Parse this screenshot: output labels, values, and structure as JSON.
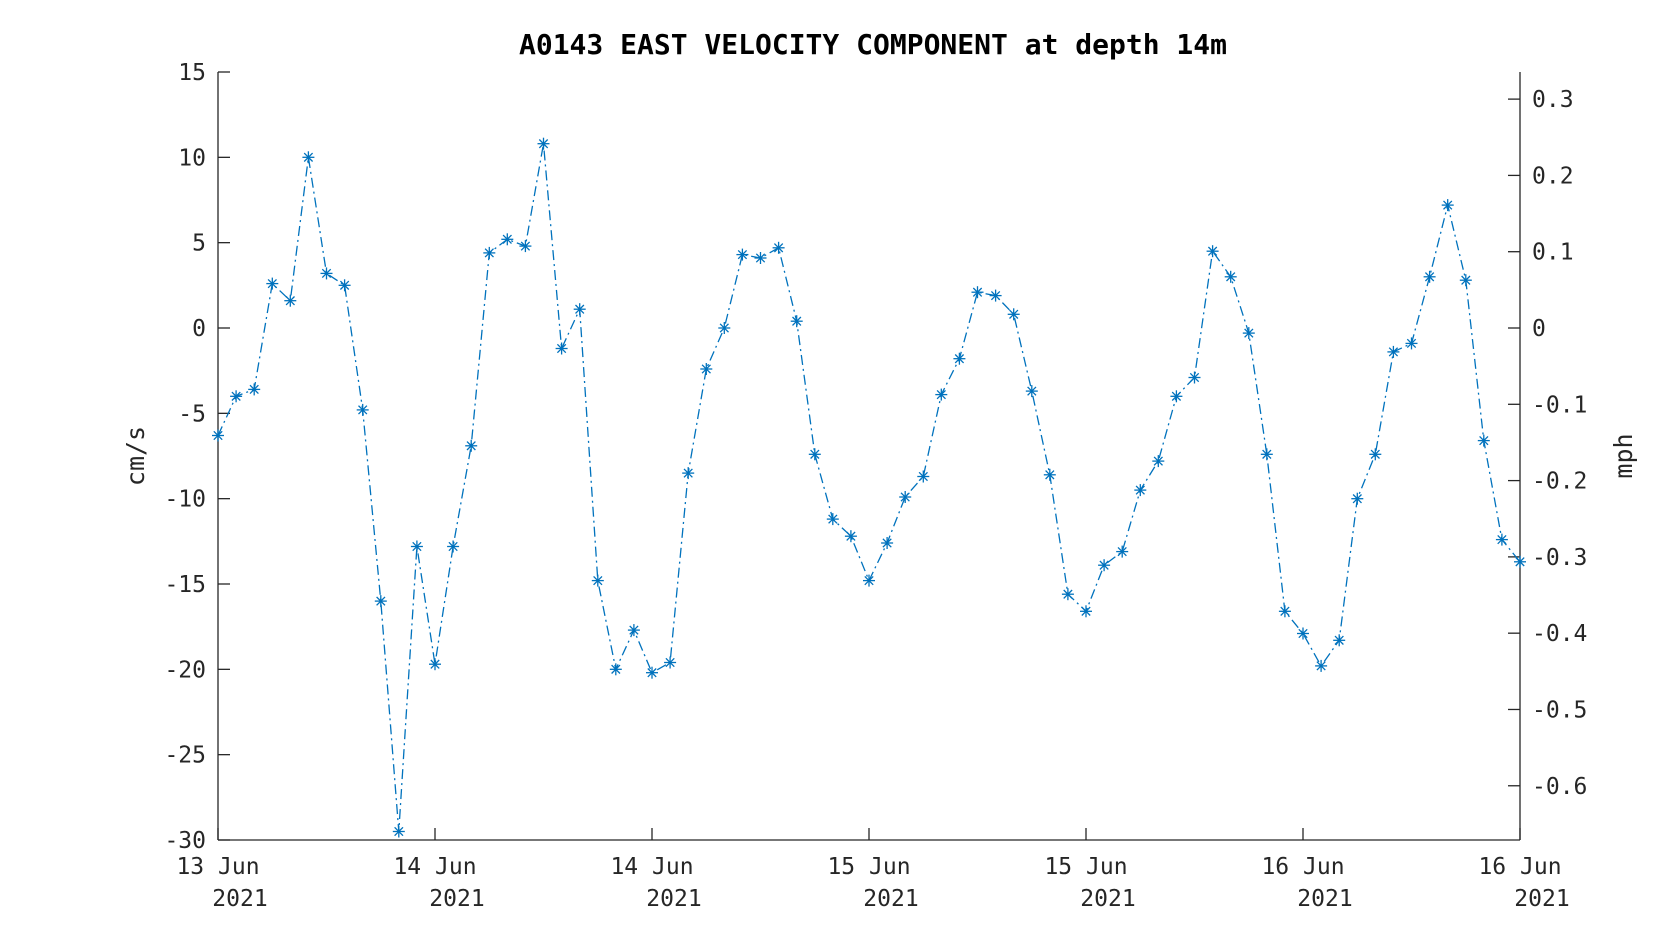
{
  "chart_data": {
    "type": "line",
    "title": "A0143 EAST VELOCITY COMPONENT at depth 14m",
    "ylabel": "cm/s",
    "ylabel_right": "mph",
    "ylim": [
      -30,
      15
    ],
    "yticks": [
      15,
      10,
      5,
      0,
      -5,
      -10,
      -15,
      -20,
      -25,
      -30
    ],
    "yticks_right": [
      "0.3",
      "0.2",
      "0.1",
      "0",
      "-0.1",
      "-0.2",
      "-0.3",
      "-0.4",
      "-0.5",
      "-0.6"
    ],
    "xlim": [
      0,
      72
    ],
    "xticks": [
      {
        "line1": "13 Jun",
        "line2": "2021"
      },
      {
        "line1": "14 Jun",
        "line2": "2021"
      },
      {
        "line1": "14 Jun",
        "line2": "2021"
      },
      {
        "line1": "15 Jun",
        "line2": "2021"
      },
      {
        "line1": "15 Jun",
        "line2": "2021"
      },
      {
        "line1": "16 Jun",
        "line2": "2021"
      },
      {
        "line1": "16 Jun",
        "line2": "2021"
      }
    ],
    "grid": false,
    "series": [
      {
        "color": "#0072BD",
        "line_style": "dash-dot",
        "marker": "asterisk",
        "values": [
          -6.3,
          -4.0,
          -3.6,
          2.6,
          1.6,
          10.0,
          3.2,
          2.5,
          -4.8,
          -16.0,
          -29.5,
          -12.8,
          -19.7,
          -12.8,
          -6.9,
          4.4,
          5.2,
          4.8,
          10.8,
          -1.2,
          1.1,
          -14.8,
          -20.0,
          -17.7,
          -20.2,
          -19.6,
          -8.5,
          -2.4,
          0.0,
          4.3,
          4.1,
          4.7,
          0.4,
          -7.4,
          -11.2,
          -12.2,
          -14.8,
          -12.6,
          -9.9,
          -8.7,
          -3.9,
          -1.8,
          2.1,
          1.9,
          0.8,
          -3.7,
          -8.6,
          -15.6,
          -16.6,
          -13.9,
          -13.1,
          -9.5,
          -7.8,
          -4.0,
          -2.9,
          4.5,
          3.0,
          -0.3,
          -7.4,
          -16.6,
          -17.9,
          -19.8,
          -18.3,
          -10.0,
          -7.4,
          -1.4,
          -0.9,
          3.0,
          7.2,
          2.8,
          -6.6,
          -12.4,
          -13.7
        ]
      }
    ]
  }
}
